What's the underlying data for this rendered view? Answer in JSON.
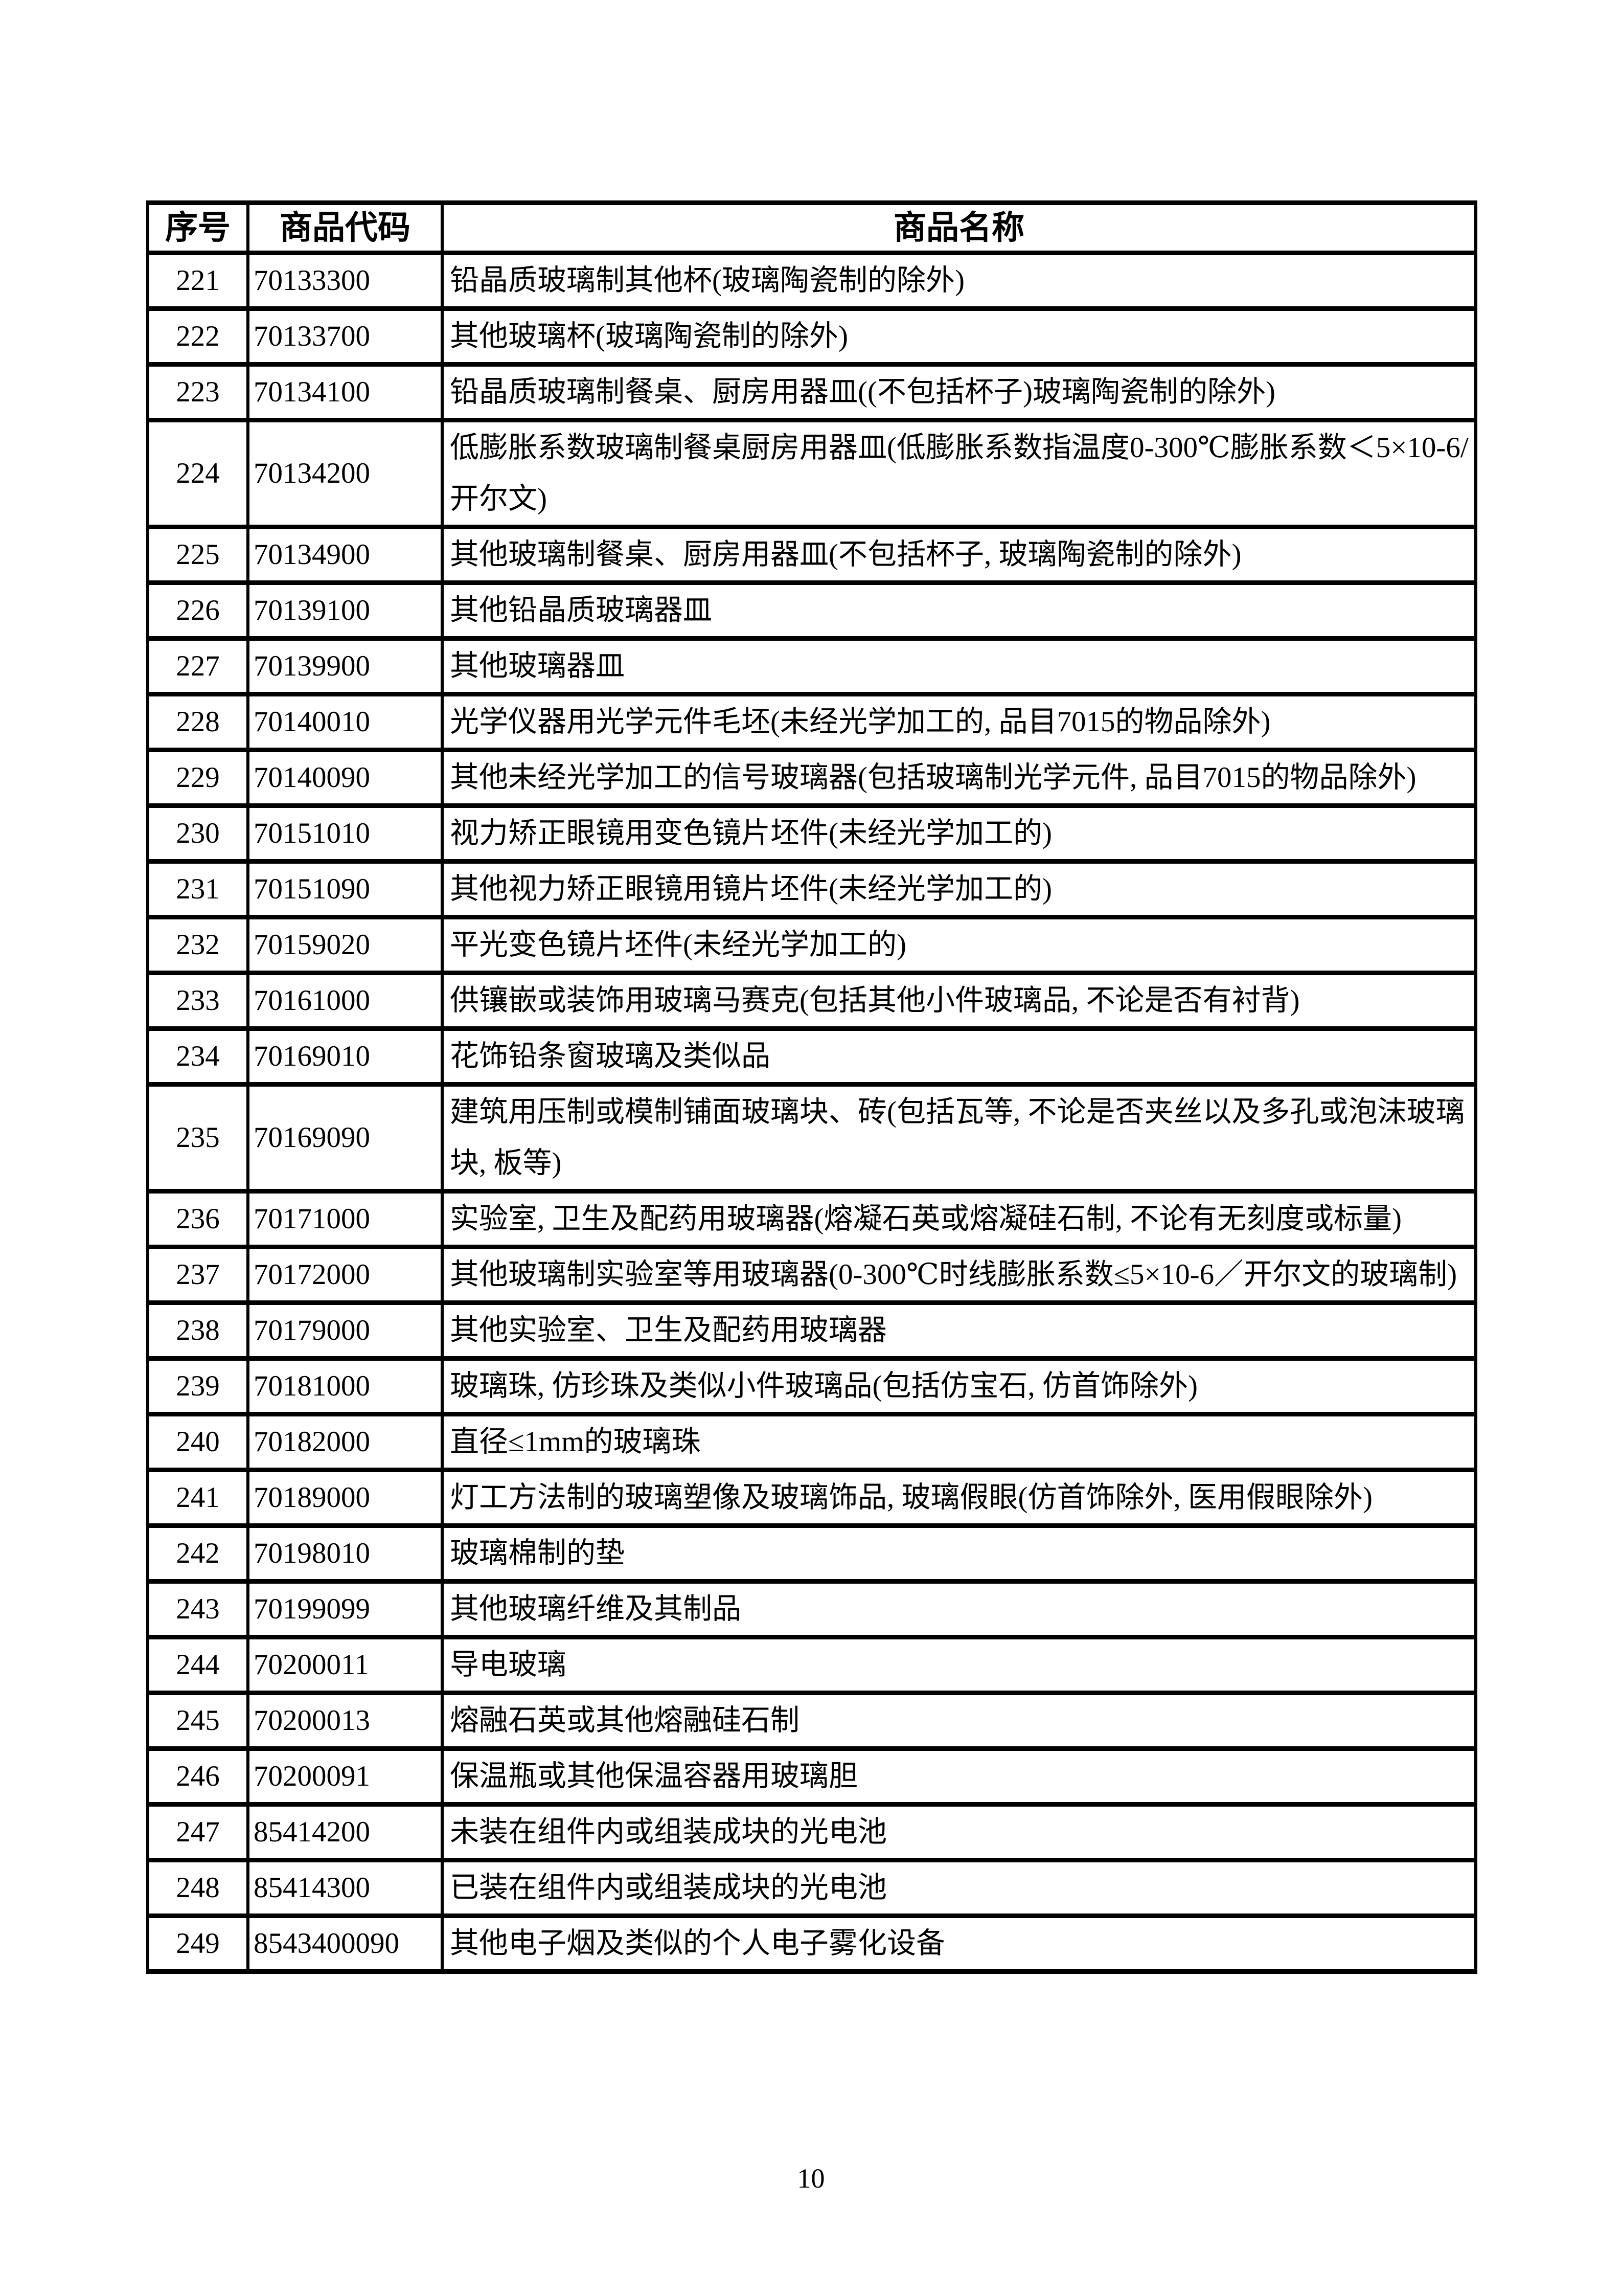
{
  "page": {
    "number": "10"
  },
  "colors": {
    "background": "#ffffff",
    "border": "#000000",
    "text": "#000000"
  },
  "table": {
    "headers": [
      "序号",
      "商品代码",
      "商品名称"
    ],
    "rows": [
      {
        "no": "221",
        "code": "70133300",
        "name": "铅晶质玻璃制其他杯(玻璃陶瓷制的除外)"
      },
      {
        "no": "222",
        "code": "70133700",
        "name": "其他玻璃杯(玻璃陶瓷制的除外)"
      },
      {
        "no": "223",
        "code": "70134100",
        "name": "铅晶质玻璃制餐桌、厨房用器皿((不包括杯子)玻璃陶瓷制的除外)"
      },
      {
        "no": "224",
        "code": "70134200",
        "name": "低膨胀系数玻璃制餐桌厨房用器皿(低膨胀系数指温度0-300℃膨胀系数＜5×10-6/开尔文)"
      },
      {
        "no": "225",
        "code": "70134900",
        "name": "其他玻璃制餐桌、厨房用器皿(不包括杯子, 玻璃陶瓷制的除外)"
      },
      {
        "no": "226",
        "code": "70139100",
        "name": "其他铅晶质玻璃器皿"
      },
      {
        "no": "227",
        "code": "70139900",
        "name": "其他玻璃器皿"
      },
      {
        "no": "228",
        "code": "70140010",
        "name": "光学仪器用光学元件毛坯(未经光学加工的, 品目7015的物品除外)"
      },
      {
        "no": "229",
        "code": "70140090",
        "name": "其他未经光学加工的信号玻璃器(包括玻璃制光学元件, 品目7015的物品除外)"
      },
      {
        "no": "230",
        "code": "70151010",
        "name": "视力矫正眼镜用变色镜片坯件(未经光学加工的)"
      },
      {
        "no": "231",
        "code": "70151090",
        "name": "其他视力矫正眼镜用镜片坯件(未经光学加工的)"
      },
      {
        "no": "232",
        "code": "70159020",
        "name": "平光变色镜片坯件(未经光学加工的)"
      },
      {
        "no": "233",
        "code": "70161000",
        "name": "供镶嵌或装饰用玻璃马赛克(包括其他小件玻璃品, 不论是否有衬背)"
      },
      {
        "no": "234",
        "code": "70169010",
        "name": "花饰铅条窗玻璃及类似品"
      },
      {
        "no": "235",
        "code": "70169090",
        "name": "建筑用压制或模制铺面玻璃块、砖(包括瓦等, 不论是否夹丝以及多孔或泡沫玻璃块, 板等)"
      },
      {
        "no": "236",
        "code": "70171000",
        "name": "实验室, 卫生及配药用玻璃器(熔凝石英或熔凝硅石制, 不论有无刻度或标量)"
      },
      {
        "no": "237",
        "code": "70172000",
        "name": "其他玻璃制实验室等用玻璃器(0-300℃时线膨胀系数≤5×10-6／开尔文的玻璃制)"
      },
      {
        "no": "238",
        "code": "70179000",
        "name": "其他实验室、卫生及配药用玻璃器"
      },
      {
        "no": "239",
        "code": "70181000",
        "name": "玻璃珠, 仿珍珠及类似小件玻璃品(包括仿宝石, 仿首饰除外)"
      },
      {
        "no": "240",
        "code": "70182000",
        "name": "直径≤1mm的玻璃珠"
      },
      {
        "no": "241",
        "code": "70189000",
        "name": "灯工方法制的玻璃塑像及玻璃饰品, 玻璃假眼(仿首饰除外, 医用假眼除外)"
      },
      {
        "no": "242",
        "code": "70198010",
        "name": "玻璃棉制的垫"
      },
      {
        "no": "243",
        "code": "70199099",
        "name": "其他玻璃纤维及其制品"
      },
      {
        "no": "244",
        "code": "70200011",
        "name": "导电玻璃"
      },
      {
        "no": "245",
        "code": "70200013",
        "name": "熔融石英或其他熔融硅石制"
      },
      {
        "no": "246",
        "code": "70200091",
        "name": "保温瓶或其他保温容器用玻璃胆"
      },
      {
        "no": "247",
        "code": "85414200",
        "name": "未装在组件内或组装成块的光电池"
      },
      {
        "no": "248",
        "code": "85414300",
        "name": "已装在组件内或组装成块的光电池"
      },
      {
        "no": "249",
        "code": "8543400090",
        "name": "其他电子烟及类似的个人电子雾化设备"
      }
    ]
  }
}
